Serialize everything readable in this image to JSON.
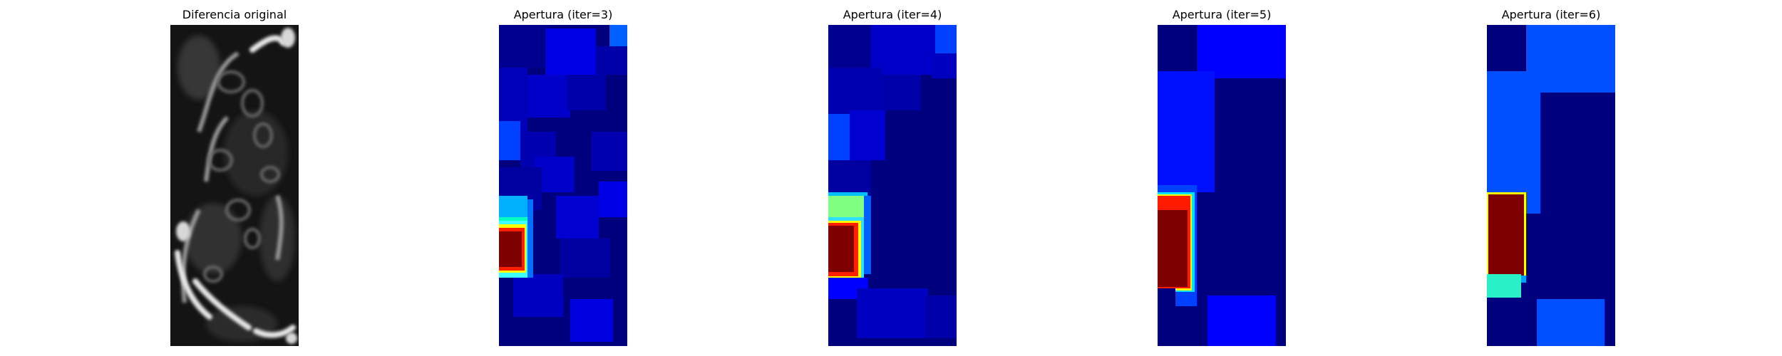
{
  "figure": {
    "panels": [
      {
        "title": "Diferencia original",
        "colormap": "gray"
      },
      {
        "title": "Apertura (iter=3)",
        "colormap": "jet"
      },
      {
        "title": "Apertura (iter=4)",
        "colormap": "jet"
      },
      {
        "title": "Apertura (iter=5)",
        "colormap": "jet"
      },
      {
        "title": "Apertura (iter=6)",
        "colormap": "jet"
      }
    ]
  },
  "colors": {
    "jet_darkblue": "#00007f",
    "jet_blue": "#0000ff",
    "jet_midblue": "#0040ff",
    "jet_lightblue": "#0080ff",
    "jet_cyan": "#00d4ff",
    "jet_teal": "#2af0c8",
    "jet_yellow": "#ffff00",
    "jet_red": "#ff1a00",
    "jet_darkred": "#7f0000"
  }
}
